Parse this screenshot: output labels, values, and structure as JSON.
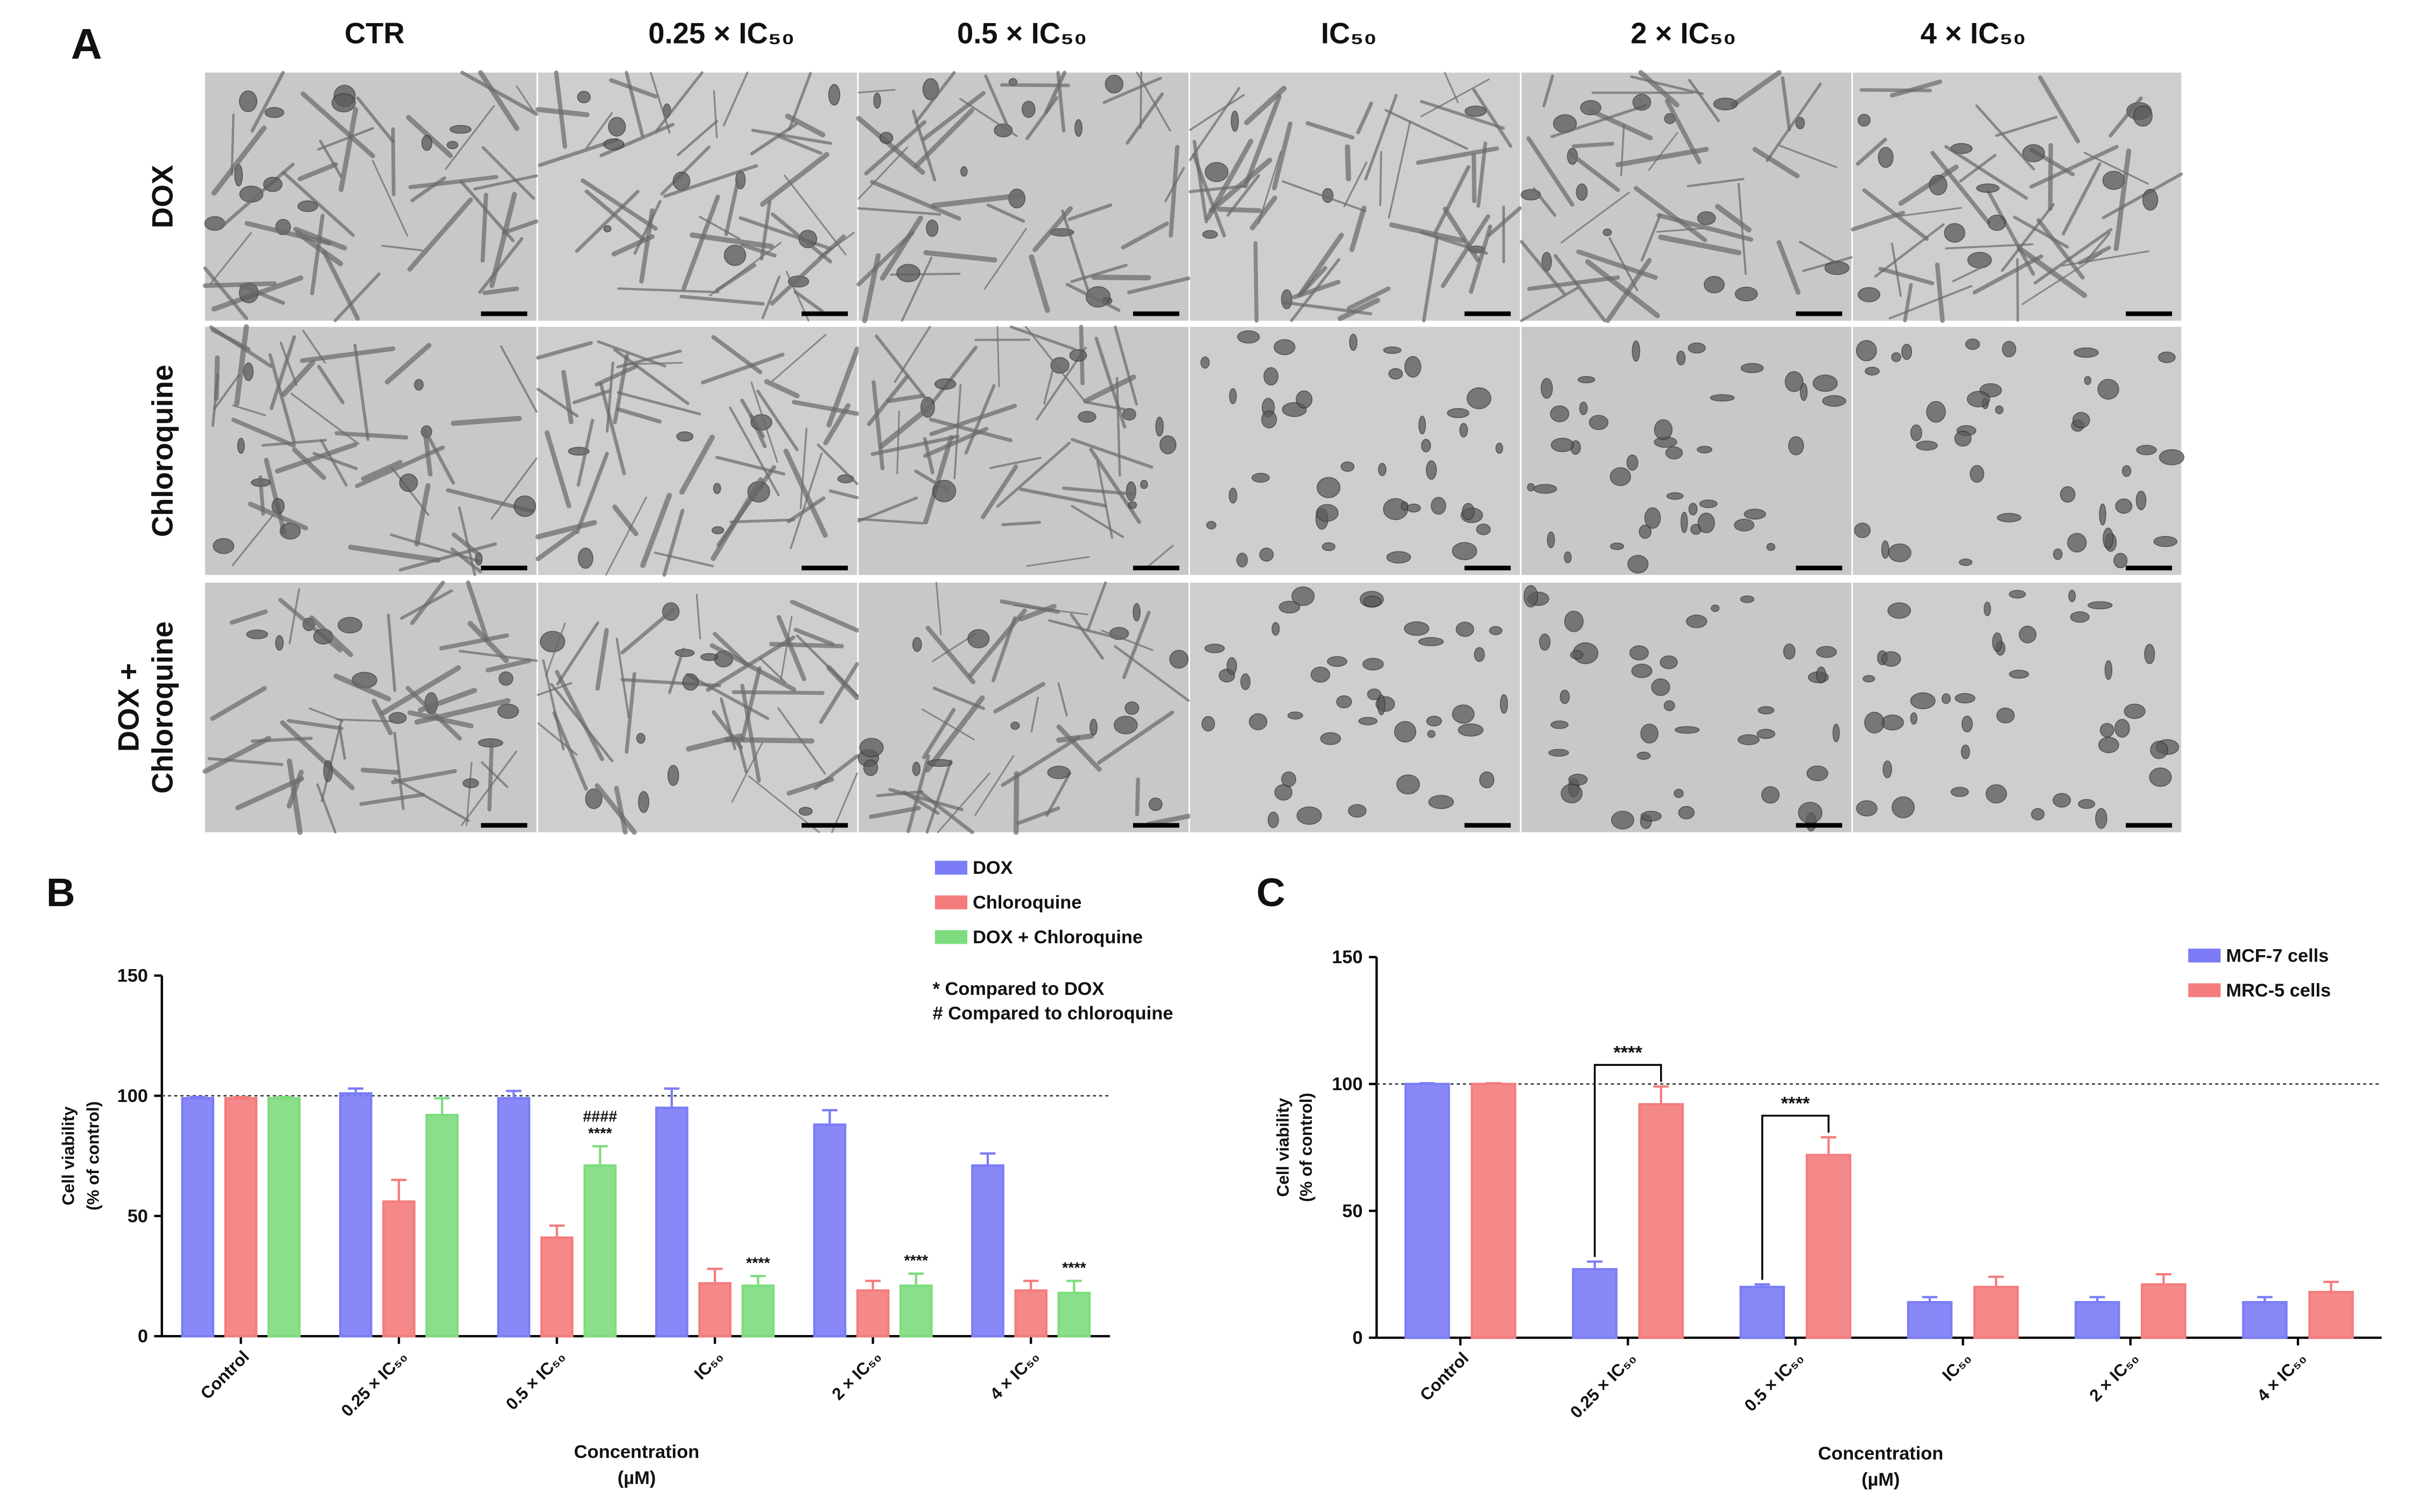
{
  "panel_a": {
    "label": "A",
    "columns": [
      "CTR",
      "0.25 × IC₅₀",
      "0.5 × IC₅₀",
      "IC₅₀",
      "2 × IC₅₀",
      "4 × IC₅₀"
    ],
    "rows": [
      [
        "DOX"
      ],
      [
        "Chloroquine"
      ],
      [
        "DOX +",
        "Chloroquine"
      ]
    ]
  },
  "chart_data": [
    {
      "type": "bar",
      "panel_label": "B",
      "categories": [
        "Control",
        "0.25 × IC₅₀",
        "0.5 × IC₅₀",
        "IC₅₀",
        "2 × IC₅₀",
        "4 × IC₅₀"
      ],
      "series": [
        {
          "name": "DOX",
          "color": "#7b7cf6",
          "values": [
            99,
            101,
            99,
            95,
            88,
            71
          ],
          "errors": [
            0.5,
            2,
            3,
            8,
            6,
            5
          ]
        },
        {
          "name": "Chloroquine",
          "color": "#f47c7c",
          "values": [
            99,
            56,
            41,
            22,
            19,
            19
          ],
          "errors": [
            0.5,
            9,
            5,
            6,
            4,
            4
          ]
        },
        {
          "name": "DOX + Chloroquine",
          "color": "#7ddc7d",
          "values": [
            99,
            92,
            71,
            21,
            21,
            18
          ],
          "errors": [
            0.5,
            7,
            8,
            4,
            5,
            5
          ],
          "annotations": [
            null,
            null,
            [
              "####",
              "****"
            ],
            [
              "****"
            ],
            [
              "****"
            ],
            [
              "****"
            ]
          ]
        }
      ],
      "ylim": [
        0,
        150
      ],
      "yticks": [
        0,
        50,
        100,
        150
      ],
      "reference_line": 100,
      "y_label": [
        "Cell viability",
        "(% of control)"
      ],
      "x_label": [
        "Concentration",
        "(µM)"
      ],
      "notes": [
        "* Compared to DOX",
        "# Compared to chloroquine"
      ],
      "legend_position": "top-right"
    },
    {
      "type": "bar",
      "panel_label": "C",
      "categories": [
        "Control",
        "0.25 × IC₅₀",
        "0.5 × IC₅₀",
        "IC₅₀",
        "2 × IC₅₀",
        "4 × IC₅₀"
      ],
      "series": [
        {
          "name": "MCF-7 cells",
          "color": "#7b7cf6",
          "values": [
            100,
            27,
            20,
            14,
            14,
            14
          ],
          "errors": [
            0.3,
            3,
            1,
            2,
            2,
            2
          ]
        },
        {
          "name": "MRC-5 cells",
          "color": "#f47c7c",
          "values": [
            100,
            92,
            72,
            20,
            21,
            18
          ],
          "errors": [
            0.3,
            7,
            7,
            4,
            4,
            4
          ],
          "brackets": [
            null,
            "****",
            "****",
            null,
            null,
            null
          ]
        }
      ],
      "ylim": [
        0,
        150
      ],
      "yticks": [
        0,
        50,
        100,
        150
      ],
      "reference_line": 100,
      "y_label": [
        "Cell viability",
        "(% of control)"
      ],
      "x_label": [
        "Concentration",
        "(µM)"
      ],
      "legend_position": "top-right"
    }
  ]
}
